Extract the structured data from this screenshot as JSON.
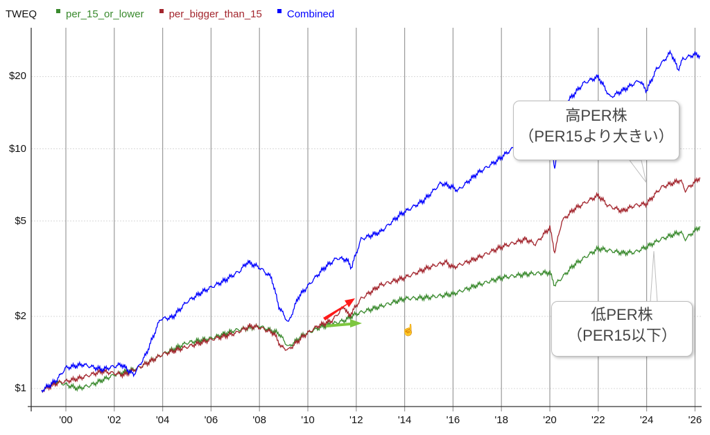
{
  "legend": {
    "title": "TWEQ",
    "items": [
      {
        "label": "per_15_or_lower",
        "color": "#3a8a2e"
      },
      {
        "label": "per_bigger_than_15",
        "color": "#a3262e"
      },
      {
        "label": "Combined",
        "color": "#0000ff"
      }
    ]
  },
  "y_ticks": [
    {
      "label": "$20",
      "value": 20
    },
    {
      "label": "$10",
      "value": 10
    },
    {
      "label": "$5",
      "value": 5
    },
    {
      "label": "$2",
      "value": 2
    },
    {
      "label": "$1",
      "value": 1
    }
  ],
  "x_ticks": [
    {
      "label": "'00",
      "year": 2000
    },
    {
      "label": "'02",
      "year": 2002
    },
    {
      "label": "'04",
      "year": 2004
    },
    {
      "label": "'06",
      "year": 2006
    },
    {
      "label": "'08",
      "year": 2008
    },
    {
      "label": "'10",
      "year": 2010
    },
    {
      "label": "'12",
      "year": 2012
    },
    {
      "label": "'14",
      "year": 2014
    },
    {
      "label": "'16",
      "year": 2016
    },
    {
      "label": "'18",
      "year": 2018
    },
    {
      "label": "'20",
      "year": 2020
    },
    {
      "label": "'22",
      "year": 2022
    },
    {
      "label": "'24",
      "year": 2024
    },
    {
      "label": "'26",
      "year": 2026
    }
  ],
  "callouts": {
    "high_per": {
      "line1": "高PER株",
      "line2": "（PER15より大きい）"
    },
    "low_per": {
      "line1": "低PER株",
      "line2": "（PER15以下）"
    }
  },
  "annotations": {
    "red_arrow_color": "#ff1a1a",
    "green_arrow_color": "#7dc63f"
  },
  "chart_data": {
    "type": "line",
    "title": "TWEQ",
    "xlabel": "",
    "ylabel": "",
    "y_scale": "log",
    "ylim": [
      0.9,
      28
    ],
    "xlim": [
      1998.5,
      2026.3
    ],
    "grid": {
      "x": true,
      "y": true
    },
    "legend_position": "top-left",
    "series": [
      {
        "name": "per_15_or_lower",
        "color": "#3a8a2e",
        "points": [
          [
            1999.0,
            0.98
          ],
          [
            1999.6,
            1.07
          ],
          [
            2000.5,
            1.0
          ],
          [
            2001.0,
            1.03
          ],
          [
            2002.0,
            1.14
          ],
          [
            2003.0,
            1.22
          ],
          [
            2004.0,
            1.39
          ],
          [
            2005.0,
            1.55
          ],
          [
            2006.0,
            1.62
          ],
          [
            2007.0,
            1.75
          ],
          [
            2008.0,
            1.82
          ],
          [
            2008.8,
            1.7
          ],
          [
            2009.2,
            1.49
          ],
          [
            2009.8,
            1.67
          ],
          [
            2010.5,
            1.8
          ],
          [
            2011.5,
            1.92
          ],
          [
            2012.0,
            2.05
          ],
          [
            2013.0,
            2.2
          ],
          [
            2014.0,
            2.37
          ],
          [
            2015.0,
            2.4
          ],
          [
            2016.0,
            2.48
          ],
          [
            2017.0,
            2.7
          ],
          [
            2018.0,
            2.9
          ],
          [
            2019.0,
            3.0
          ],
          [
            2020.0,
            3.05
          ],
          [
            2020.2,
            2.7
          ],
          [
            2020.5,
            2.9
          ],
          [
            2021.0,
            3.28
          ],
          [
            2022.0,
            3.84
          ],
          [
            2023.0,
            3.68
          ],
          [
            2023.5,
            3.7
          ],
          [
            2024.0,
            3.9
          ],
          [
            2024.6,
            4.2
          ],
          [
            2025.4,
            4.5
          ],
          [
            2025.6,
            4.2
          ],
          [
            2026.2,
            4.75
          ]
        ]
      },
      {
        "name": "per_bigger_than_15",
        "color": "#a3262e",
        "points": [
          [
            1999.0,
            0.98
          ],
          [
            1999.6,
            1.05
          ],
          [
            2000.5,
            1.1
          ],
          [
            2001.5,
            1.18
          ],
          [
            2002.4,
            1.14
          ],
          [
            2003.0,
            1.22
          ],
          [
            2003.5,
            1.3
          ],
          [
            2004.0,
            1.39
          ],
          [
            2005.0,
            1.49
          ],
          [
            2006.0,
            1.6
          ],
          [
            2007.0,
            1.7
          ],
          [
            2007.6,
            1.82
          ],
          [
            2008.0,
            1.8
          ],
          [
            2008.6,
            1.7
          ],
          [
            2008.9,
            1.49
          ],
          [
            2009.2,
            1.45
          ],
          [
            2009.8,
            1.65
          ],
          [
            2010.4,
            1.82
          ],
          [
            2011.0,
            1.92
          ],
          [
            2011.5,
            2.2
          ],
          [
            2011.7,
            2.0
          ],
          [
            2012.2,
            2.37
          ],
          [
            2013.0,
            2.7
          ],
          [
            2014.0,
            2.9
          ],
          [
            2015.0,
            3.2
          ],
          [
            2015.7,
            3.37
          ],
          [
            2016.0,
            3.2
          ],
          [
            2017.0,
            3.5
          ],
          [
            2018.0,
            3.9
          ],
          [
            2019.0,
            4.2
          ],
          [
            2019.4,
            4.0
          ],
          [
            2020.0,
            4.7
          ],
          [
            2020.2,
            3.7
          ],
          [
            2020.5,
            5.0
          ],
          [
            2021.0,
            5.6
          ],
          [
            2022.0,
            6.4
          ],
          [
            2022.4,
            5.8
          ],
          [
            2023.0,
            5.5
          ],
          [
            2023.5,
            5.8
          ],
          [
            2024.0,
            5.9
          ],
          [
            2024.6,
            6.9
          ],
          [
            2025.4,
            7.4
          ],
          [
            2025.6,
            6.7
          ],
          [
            2026.2,
            7.6
          ]
        ]
      },
      {
        "name": "Combined",
        "color": "#0000ff",
        "points": [
          [
            1999.0,
            0.98
          ],
          [
            1999.6,
            1.08
          ],
          [
            2000.0,
            1.22
          ],
          [
            2000.7,
            1.26
          ],
          [
            2001.5,
            1.2
          ],
          [
            2002.3,
            1.26
          ],
          [
            2002.8,
            1.14
          ],
          [
            2003.3,
            1.38
          ],
          [
            2003.9,
            1.95
          ],
          [
            2004.4,
            1.98
          ],
          [
            2005.0,
            2.3
          ],
          [
            2005.7,
            2.55
          ],
          [
            2006.5,
            2.8
          ],
          [
            2007.2,
            3.1
          ],
          [
            2007.5,
            3.37
          ],
          [
            2008.0,
            3.2
          ],
          [
            2008.5,
            2.9
          ],
          [
            2008.8,
            2.2
          ],
          [
            2009.2,
            1.88
          ],
          [
            2009.6,
            2.4
          ],
          [
            2010.3,
            2.9
          ],
          [
            2010.7,
            3.2
          ],
          [
            2011.2,
            3.5
          ],
          [
            2011.6,
            3.45
          ],
          [
            2011.8,
            3.2
          ],
          [
            2012.2,
            4.2
          ],
          [
            2013.0,
            4.5
          ],
          [
            2013.8,
            5.3
          ],
          [
            2014.8,
            6.1
          ],
          [
            2015.5,
            7.2
          ],
          [
            2016.0,
            6.9
          ],
          [
            2016.2,
            6.7
          ],
          [
            2017.0,
            7.9
          ],
          [
            2017.8,
            8.9
          ],
          [
            2018.6,
            10.3
          ],
          [
            2019.2,
            10.0
          ],
          [
            2020.0,
            12.1
          ],
          [
            2020.2,
            8.3
          ],
          [
            2020.6,
            15.2
          ],
          [
            2021.4,
            18.8
          ],
          [
            2022.0,
            20.0
          ],
          [
            2022.5,
            16.4
          ],
          [
            2023.0,
            17.5
          ],
          [
            2023.7,
            19.3
          ],
          [
            2024.0,
            17.5
          ],
          [
            2024.4,
            21.4
          ],
          [
            2025.0,
            25.3
          ],
          [
            2025.3,
            21.4
          ],
          [
            2025.5,
            23.7
          ],
          [
            2026.0,
            24.8
          ],
          [
            2026.2,
            24.5
          ]
        ]
      }
    ]
  }
}
